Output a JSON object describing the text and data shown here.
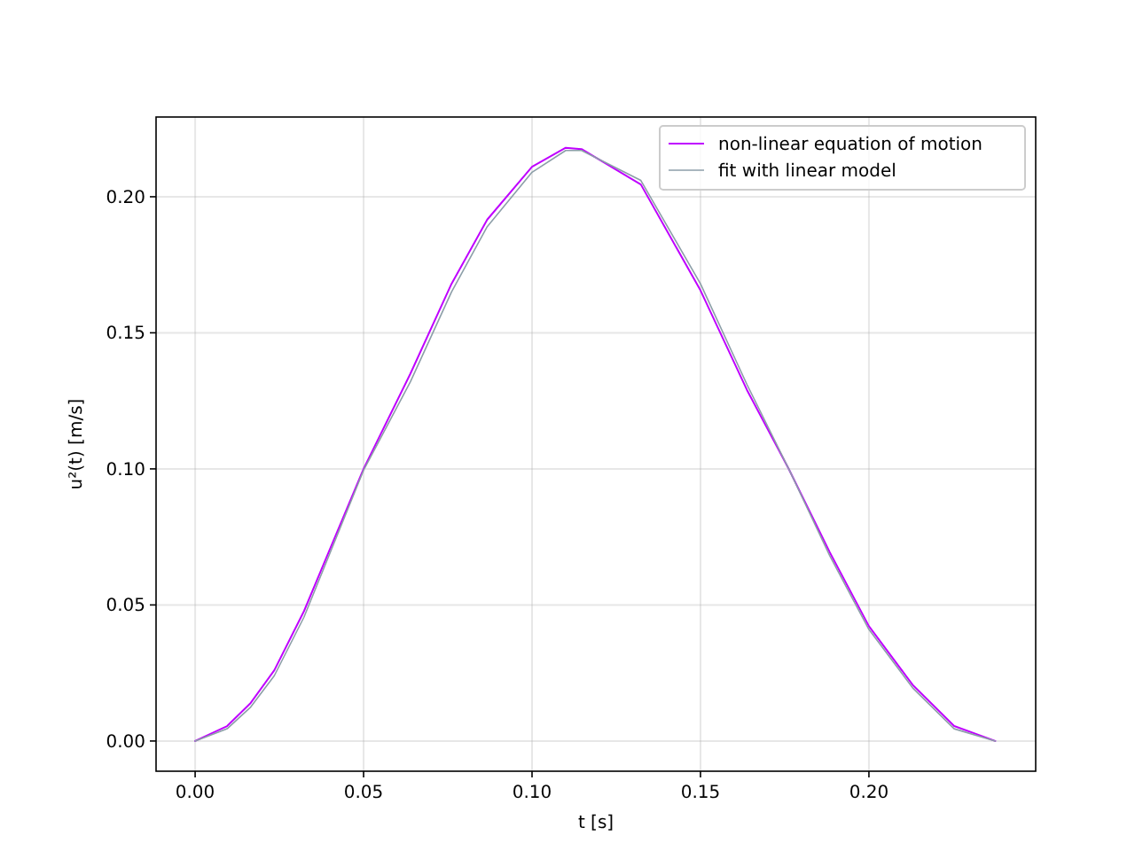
{
  "chart_data": {
    "type": "line",
    "xlabel": "t [s]",
    "ylabel": "u²(t) [m/s]",
    "xlim": [
      -0.0116,
      0.2495
    ],
    "ylim": [
      -0.0111,
      0.2293
    ],
    "xticks": [
      {
        "value": 0,
        "label": "0.00"
      },
      {
        "value": 0.05,
        "label": "0.05"
      },
      {
        "value": 0.1,
        "label": "0.10"
      },
      {
        "value": 0.15,
        "label": "0.15"
      },
      {
        "value": 0.2,
        "label": "0.20"
      }
    ],
    "yticks": [
      {
        "value": 0,
        "label": "0.00"
      },
      {
        "value": 0.05,
        "label": "0.05"
      },
      {
        "value": 0.1,
        "label": "0.10"
      },
      {
        "value": 0.15,
        "label": "0.15"
      },
      {
        "value": 0.2,
        "label": "0.20"
      }
    ],
    "grid": true,
    "legend": "top right",
    "marker": "none",
    "line_style": "solid",
    "series": [
      {
        "name": "non-linear equation of motion",
        "color": "#bf00ff",
        "x": [
          0,
          0.0095,
          0.0165,
          0.0235,
          0.0323,
          0.05,
          0.0639,
          0.0761,
          0.0867,
          0.1,
          0.11,
          0.1147,
          0.1323,
          0.15,
          0.1638,
          0.1762,
          0.1884,
          0.2,
          0.213,
          0.2253,
          0.2375
        ],
        "values": [
          0,
          0.0055,
          0.014,
          0.026,
          0.0477,
          0.1,
          0.135,
          0.168,
          0.1916,
          0.211,
          0.218,
          0.2175,
          0.2045,
          0.1656,
          0.129,
          0.1,
          0.0693,
          0.0422,
          0.0206,
          0.0055,
          0
        ]
      },
      {
        "name": "fit with linear model",
        "color": "#8c9ea8",
        "x": [
          0,
          0.0095,
          0.0165,
          0.0235,
          0.0323,
          0.05,
          0.0639,
          0.0761,
          0.0867,
          0.1,
          0.11,
          0.1147,
          0.1323,
          0.15,
          0.1638,
          0.1762,
          0.1884,
          0.2,
          0.213,
          0.2253,
          0.2375
        ],
        "values": [
          0,
          0.0045,
          0.0125,
          0.024,
          0.0455,
          0.0995,
          0.132,
          0.165,
          0.189,
          0.209,
          0.217,
          0.217,
          0.206,
          0.168,
          0.131,
          0.1,
          0.068,
          0.041,
          0.0195,
          0.0045,
          0
        ]
      }
    ]
  }
}
